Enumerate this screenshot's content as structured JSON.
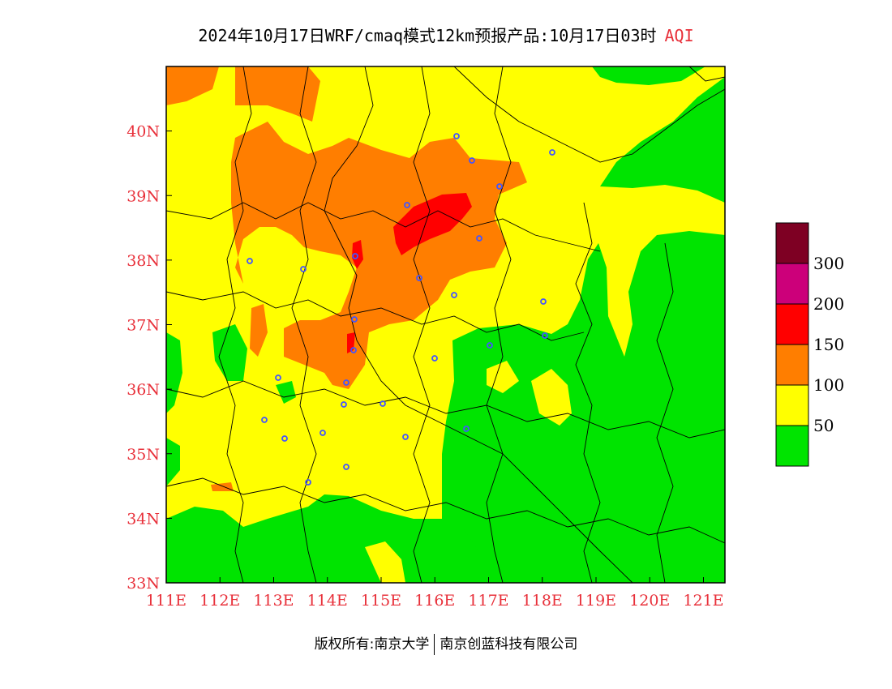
{
  "title": {
    "main": "2024年10月17日WRF/cmaq模式12km预报产品:10月17日03时",
    "product": "AQI"
  },
  "axes": {
    "x_ticks": [
      "111E",
      "112E",
      "113E",
      "114E",
      "115E",
      "116E",
      "117E",
      "118E",
      "119E",
      "120E",
      "121E"
    ],
    "y_ticks": [
      "33N",
      "34N",
      "35N",
      "36N",
      "37N",
      "38N",
      "39N",
      "40N"
    ],
    "lon_range": [
      111,
      121.4
    ],
    "lat_range": [
      33,
      41
    ]
  },
  "legend": {
    "labels": [
      "50",
      "100",
      "150",
      "200",
      "300"
    ],
    "colors": [
      "#00e400",
      "#ffff00",
      "#ff7e00",
      "#ff0000",
      "#cc007a",
      "#7e0023"
    ]
  },
  "map_colors": {
    "green": "#00e400",
    "yellow": "#ffff00",
    "orange": "#ff7e00",
    "red": "#ff0000",
    "marker": "#4455ff"
  },
  "footer": {
    "left": "版权所有:南京大学",
    "right": "南京创蓝科技有限公司"
  }
}
